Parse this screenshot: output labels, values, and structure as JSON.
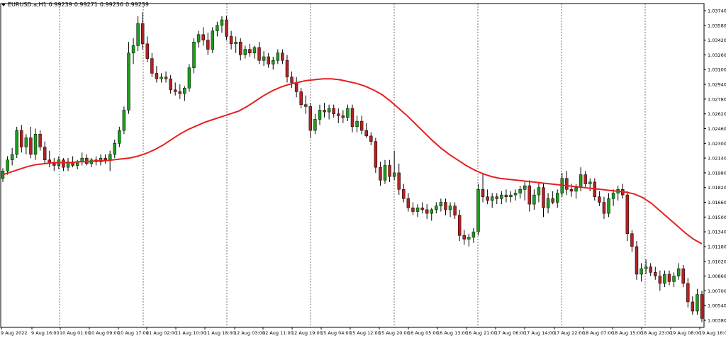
{
  "header": {
    "symbol": "EURUSD.a,H1",
    "open": "0.99239",
    "high": "0.99271",
    "low": "0.99236",
    "close": "0.99259"
  },
  "colors": {
    "bull": "#1a9e1a",
    "bear": "#b22222",
    "wick": "#000000",
    "ma": "#e81f1f",
    "grid": "#555555"
  },
  "chart_data": {
    "type": "candlestick",
    "ylim": [
      1.0038,
      1.039
    ],
    "y_ticks": [
      "1.03740",
      "1.03580",
      "1.03420",
      "1.03260",
      "1.03100",
      "1.02940",
      "1.02780",
      "1.02620",
      "1.02460",
      "1.02300",
      "1.02140",
      "1.01980",
      "1.01820",
      "1.01660",
      "1.01500",
      "1.01340",
      "1.01180",
      "1.01020",
      "1.00860",
      "1.00700",
      "1.00540",
      "1.00380"
    ],
    "x_ticks": [
      "9 Aug 2022",
      "9 Aug 16:00",
      "10 Aug 01:00",
      "10 Aug 09:00",
      "10 Aug 17:00",
      "11 Aug 02:00",
      "11 Aug 10:00",
      "11 Aug 18:00",
      "12 Aug 03:00",
      "12 Aug 11:00",
      "12 Aug 19:00",
      "15 Aug 04:00",
      "15 Aug 12:00",
      "15 Aug 20:00",
      "16 Aug 05:00",
      "16 Aug 13:00",
      "16 Aug 21:00",
      "17 Aug 06:00",
      "17 Aug 14:00",
      "17 Aug 22:00",
      "18 Aug 07:00",
      "18 Aug 15:00",
      "18 Aug 23:00",
      "19 Aug 08:00",
      "19 Aug 16:00"
    ],
    "candles": [
      [
        1.0192,
        1.0203,
        1.0188,
        1.02
      ],
      [
        1.02,
        1.0216,
        1.0196,
        1.0212
      ],
      [
        1.0212,
        1.0225,
        1.0206,
        1.0218
      ],
      [
        1.0218,
        1.0248,
        1.0214,
        1.0244
      ],
      [
        1.0244,
        1.025,
        1.022,
        1.0226
      ],
      [
        1.0226,
        1.024,
        1.0218,
        1.0236
      ],
      [
        1.0236,
        1.0248,
        1.0214,
        1.0218
      ],
      [
        1.0218,
        1.0246,
        1.0212,
        1.024
      ],
      [
        1.024,
        1.0244,
        1.0222,
        1.0226
      ],
      [
        1.0226,
        1.0232,
        1.0208,
        1.0212
      ],
      [
        1.0212,
        1.0222,
        1.0204,
        1.0208
      ],
      [
        1.0208,
        1.0214,
        1.02,
        1.0206
      ],
      [
        1.0206,
        1.0216,
        1.0202,
        1.0212
      ],
      [
        1.0212,
        1.0214,
        1.02,
        1.0204
      ],
      [
        1.0204,
        1.0214,
        1.02,
        1.021
      ],
      [
        1.021,
        1.0216,
        1.0204,
        1.0206
      ],
      [
        1.0206,
        1.0212,
        1.0202,
        1.021
      ],
      [
        1.021,
        1.022,
        1.0206,
        1.0214
      ],
      [
        1.0214,
        1.0218,
        1.0206,
        1.0208
      ],
      [
        1.0208,
        1.0214,
        1.0204,
        1.0212
      ],
      [
        1.0212,
        1.0216,
        1.0206,
        1.021
      ],
      [
        1.021,
        1.0218,
        1.0206,
        1.0214
      ],
      [
        1.0214,
        1.0218,
        1.0208,
        1.0212
      ],
      [
        1.0212,
        1.0222,
        1.02,
        1.0218
      ],
      [
        1.0218,
        1.0234,
        1.0214,
        1.023
      ],
      [
        1.023,
        1.0248,
        1.0226,
        1.0244
      ],
      [
        1.0244,
        1.027,
        1.024,
        1.0266
      ],
      [
        1.0266,
        1.034,
        1.0262,
        1.0328
      ],
      [
        1.0328,
        1.0344,
        1.0316,
        1.0336
      ],
      [
        1.0336,
        1.0368,
        1.033,
        1.036
      ],
      [
        1.036,
        1.0372,
        1.0332,
        1.0338
      ],
      [
        1.0338,
        1.0346,
        1.0318,
        1.0322
      ],
      [
        1.0322,
        1.0328,
        1.0302,
        1.0306
      ],
      [
        1.0306,
        1.0314,
        1.0296,
        1.03
      ],
      [
        1.03,
        1.0306,
        1.0296,
        1.0302
      ],
      [
        1.0302,
        1.0308,
        1.0296,
        1.03
      ],
      [
        1.03,
        1.0304,
        1.0284,
        1.0288
      ],
      [
        1.0288,
        1.0296,
        1.0282,
        1.0286
      ],
      [
        1.0286,
        1.0294,
        1.0278,
        1.0284
      ],
      [
        1.0284,
        1.0292,
        1.0276,
        1.029
      ],
      [
        1.029,
        1.0316,
        1.0286,
        1.0312
      ],
      [
        1.0312,
        1.0344,
        1.0306,
        1.034
      ],
      [
        1.034,
        1.0352,
        1.0334,
        1.0348
      ],
      [
        1.0348,
        1.0356,
        1.0336,
        1.0342
      ],
      [
        1.0342,
        1.035,
        1.0326,
        1.0332
      ],
      [
        1.0332,
        1.0356,
        1.0328,
        1.0352
      ],
      [
        1.0352,
        1.0362,
        1.0346,
        1.0358
      ],
      [
        1.0358,
        1.0368,
        1.035,
        1.0364
      ],
      [
        1.0364,
        1.0368,
        1.0342,
        1.0346
      ],
      [
        1.0346,
        1.0352,
        1.0332,
        1.0338
      ],
      [
        1.0338,
        1.0346,
        1.0328,
        1.034
      ],
      [
        1.034,
        1.0344,
        1.032,
        1.0326
      ],
      [
        1.0326,
        1.0336,
        1.0322,
        1.0332
      ],
      [
        1.0332,
        1.0338,
        1.0324,
        1.0328
      ],
      [
        1.0328,
        1.0336,
        1.0322,
        1.0334
      ],
      [
        1.0334,
        1.034,
        1.0316,
        1.032
      ],
      [
        1.032,
        1.033,
        1.0314,
        1.0324
      ],
      [
        1.0324,
        1.0328,
        1.0312,
        1.0316
      ],
      [
        1.0316,
        1.0324,
        1.031,
        1.032
      ],
      [
        1.032,
        1.0332,
        1.0316,
        1.0328
      ],
      [
        1.0328,
        1.0332,
        1.0316,
        1.032
      ],
      [
        1.032,
        1.0326,
        1.0296,
        1.0302
      ],
      [
        1.0302,
        1.0308,
        1.029,
        1.0296
      ],
      [
        1.0296,
        1.0302,
        1.028,
        1.0286
      ],
      [
        1.0286,
        1.029,
        1.0268,
        1.0272
      ],
      [
        1.0272,
        1.0282,
        1.0262,
        1.027
      ],
      [
        1.027,
        1.0274,
        1.0236,
        1.0244
      ],
      [
        1.0244,
        1.0262,
        1.024,
        1.0256
      ],
      [
        1.0256,
        1.0272,
        1.025,
        1.0266
      ],
      [
        1.0266,
        1.0274,
        1.0258,
        1.0264
      ],
      [
        1.0264,
        1.0272,
        1.0256,
        1.0268
      ],
      [
        1.0268,
        1.0272,
        1.0258,
        1.0262
      ],
      [
        1.0262,
        1.0268,
        1.0252,
        1.026
      ],
      [
        1.026,
        1.0266,
        1.0252,
        1.0258
      ],
      [
        1.0258,
        1.0272,
        1.0254,
        1.0268
      ],
      [
        1.0268,
        1.0272,
        1.0242,
        1.0248
      ],
      [
        1.0248,
        1.026,
        1.0242,
        1.0254
      ],
      [
        1.0254,
        1.026,
        1.024,
        1.0244
      ],
      [
        1.0244,
        1.0252,
        1.0236,
        1.0238
      ],
      [
        1.0238,
        1.0242,
        1.0228,
        1.0232
      ],
      [
        1.0232,
        1.0236,
        1.0198,
        1.0204
      ],
      [
        1.0204,
        1.021,
        1.0184,
        1.019
      ],
      [
        1.019,
        1.0212,
        1.0186,
        1.0206
      ],
      [
        1.0206,
        1.0212,
        1.0188,
        1.0194
      ],
      [
        1.0194,
        1.0222,
        1.019,
        1.0198
      ],
      [
        1.0198,
        1.0208,
        1.0174,
        1.018
      ],
      [
        1.018,
        1.0186,
        1.0166,
        1.017
      ],
      [
        1.017,
        1.0176,
        1.0156,
        1.016
      ],
      [
        1.016,
        1.0166,
        1.0152,
        1.0156
      ],
      [
        1.0156,
        1.0164,
        1.015,
        1.016
      ],
      [
        1.016,
        1.0166,
        1.0154,
        1.0158
      ],
      [
        1.0158,
        1.0164,
        1.0148,
        1.0154
      ],
      [
        1.0154,
        1.016,
        1.0146,
        1.0158
      ],
      [
        1.0158,
        1.0166,
        1.0154,
        1.0162
      ],
      [
        1.0162,
        1.017,
        1.0156,
        1.0166
      ],
      [
        1.0166,
        1.017,
        1.0152,
        1.0158
      ],
      [
        1.0158,
        1.0166,
        1.015,
        1.0162
      ],
      [
        1.0162,
        1.0166,
        1.0148,
        1.0152
      ],
      [
        1.0152,
        1.0158,
        1.0124,
        1.013
      ],
      [
        1.013,
        1.0136,
        1.012,
        1.0126
      ],
      [
        1.0126,
        1.0132,
        1.0118,
        1.0128
      ],
      [
        1.0128,
        1.0138,
        1.0122,
        1.0134
      ],
      [
        1.0134,
        1.0186,
        1.013,
        1.018
      ],
      [
        1.018,
        1.0198,
        1.0166,
        1.0172
      ],
      [
        1.0172,
        1.018,
        1.0164,
        1.0168
      ],
      [
        1.0168,
        1.0176,
        1.016,
        1.0172
      ],
      [
        1.0172,
        1.0176,
        1.0164,
        1.017
      ],
      [
        1.017,
        1.0178,
        1.0164,
        1.0174
      ],
      [
        1.0174,
        1.018,
        1.0166,
        1.0172
      ],
      [
        1.0172,
        1.0178,
        1.0166,
        1.0174
      ],
      [
        1.0174,
        1.018,
        1.0168,
        1.0176
      ],
      [
        1.0176,
        1.0184,
        1.017,
        1.018
      ],
      [
        1.018,
        1.0188,
        1.0168,
        1.0184
      ],
      [
        1.0184,
        1.019,
        1.0156,
        1.0164
      ],
      [
        1.0164,
        1.018,
        1.0158,
        1.0174
      ],
      [
        1.0174,
        1.0188,
        1.0166,
        1.0182
      ],
      [
        1.0182,
        1.0186,
        1.015,
        1.016
      ],
      [
        1.016,
        1.0176,
        1.0154,
        1.017
      ],
      [
        1.017,
        1.0178,
        1.0164,
        1.0166
      ],
      [
        1.0166,
        1.018,
        1.016,
        1.0176
      ],
      [
        1.0176,
        1.0198,
        1.0172,
        1.0192
      ],
      [
        1.0192,
        1.02,
        1.0174,
        1.018
      ],
      [
        1.018,
        1.0186,
        1.0172,
        1.0178
      ],
      [
        1.0178,
        1.0186,
        1.017,
        1.0182
      ],
      [
        1.0182,
        1.0204,
        1.0178,
        1.0196
      ],
      [
        1.0196,
        1.02,
        1.0182,
        1.0186
      ],
      [
        1.0186,
        1.0192,
        1.0178,
        1.0188
      ],
      [
        1.0188,
        1.0192,
        1.0168,
        1.0172
      ],
      [
        1.0172,
        1.0178,
        1.0162,
        1.0166
      ],
      [
        1.0166,
        1.0172,
        1.0148,
        1.0154
      ],
      [
        1.0154,
        1.0176,
        1.015,
        1.017
      ],
      [
        1.017,
        1.018,
        1.0162,
        1.0176
      ],
      [
        1.0176,
        1.0184,
        1.0168,
        1.018
      ],
      [
        1.018,
        1.0186,
        1.017,
        1.0174
      ],
      [
        1.0174,
        1.0178,
        1.0124,
        1.0132
      ],
      [
        1.0132,
        1.0136,
        1.0112,
        1.0118
      ],
      [
        1.0118,
        1.0124,
        1.0082,
        1.0088
      ],
      [
        1.0088,
        1.01,
        1.008,
        1.0094
      ],
      [
        1.0094,
        1.0104,
        1.0088,
        1.0096
      ],
      [
        1.0096,
        1.01,
        1.0086,
        1.009
      ],
      [
        1.009,
        1.0096,
        1.0082,
        1.0086
      ],
      [
        1.0086,
        1.0092,
        1.007,
        1.0078
      ],
      [
        1.0078,
        1.0092,
        1.0074,
        1.0088
      ],
      [
        1.0088,
        1.0092,
        1.0076,
        1.008
      ],
      [
        1.008,
        1.009,
        1.0074,
        1.0086
      ],
      [
        1.0086,
        1.01,
        1.0082,
        1.0094
      ],
      [
        1.0094,
        1.0098,
        1.0074,
        1.0078
      ],
      [
        1.0078,
        1.0084,
        1.0052,
        1.0058
      ],
      [
        1.0058,
        1.0064,
        1.0044,
        1.0048
      ],
      [
        1.0048,
        1.0072,
        1.0044,
        1.0066
      ],
      [
        1.0066,
        1.007,
        1.0036,
        1.004
      ]
    ],
    "ma_series": [
      1.0196,
      1.0199,
      1.0202,
      1.0205,
      1.0207,
      1.0208,
      1.0209,
      1.0209,
      1.0209,
      1.021,
      1.021,
      1.0211,
      1.0211,
      1.0212,
      1.0213,
      1.0214,
      1.0216,
      1.0219,
      1.0223,
      1.0228,
      1.0234,
      1.024,
      1.0245,
      1.0249,
      1.0253,
      1.0256,
      1.0259,
      1.0262,
      1.0265,
      1.027,
      1.0276,
      1.0282,
      1.0287,
      1.0291,
      1.0294,
      1.0296,
      1.0298,
      1.0299,
      1.03,
      1.03,
      1.0299,
      1.0297,
      1.0295,
      1.0292,
      1.0288,
      1.0283,
      1.0276,
      1.0268,
      1.026,
      1.0251,
      1.0242,
      1.0233,
      1.0225,
      1.0218,
      1.0212,
      1.0206,
      1.0201,
      1.0197,
      1.0194,
      1.0192,
      1.0191,
      1.019,
      1.0189,
      1.0188,
      1.0187,
      1.0186,
      1.0185,
      1.0184,
      1.0183,
      1.0182,
      1.0181,
      1.018,
      1.0179,
      1.0178,
      1.0177,
      1.0175,
      1.0171,
      1.0165,
      1.0157,
      1.0149,
      1.0141,
      1.0133,
      1.0126,
      1.0121
    ],
    "ma_last_x": 1.0
  }
}
